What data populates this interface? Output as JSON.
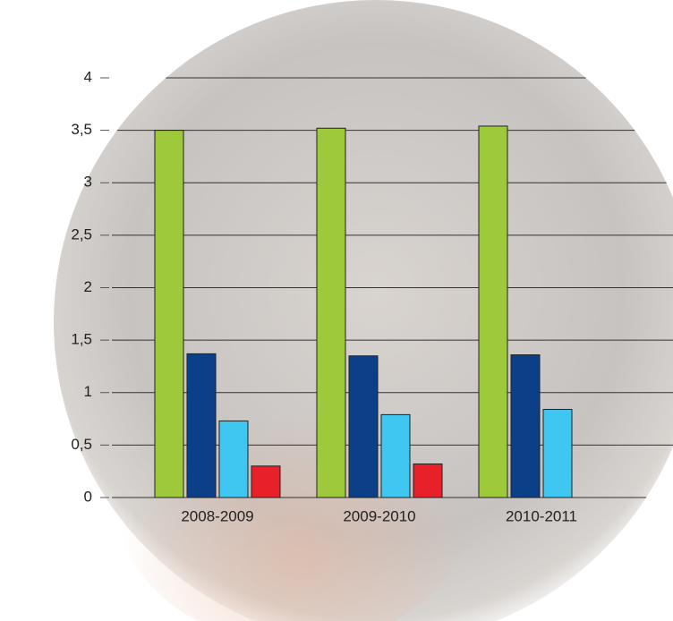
{
  "chart_data": {
    "type": "bar",
    "categories": [
      "2008-2009",
      "2009-2010",
      "2010-2011"
    ],
    "series": [
      {
        "color": "#9dc93b",
        "values": [
          3.5,
          3.52,
          3.54
        ]
      },
      {
        "color": "#0b3f88",
        "values": [
          1.37,
          1.35,
          1.36
        ]
      },
      {
        "color": "#3fc6f1",
        "values": [
          0.73,
          0.79,
          0.84
        ]
      },
      {
        "color": "#e8202a",
        "values": [
          0.3,
          0.32,
          null
        ]
      }
    ],
    "ylim": [
      0,
      4
    ],
    "yticks": [
      0,
      {
        "value": 0.5,
        "label": "0,5"
      },
      1,
      {
        "value": 1.5,
        "label": "1,5"
      },
      2,
      {
        "value": 2.5,
        "label": "2,5"
      },
      3,
      {
        "value": 3.5,
        "label": "3,5"
      },
      4
    ],
    "grid": true
  }
}
